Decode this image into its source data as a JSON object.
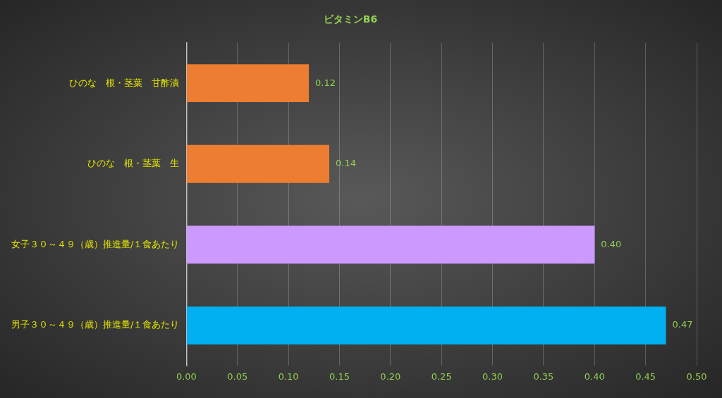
{
  "chart_data": {
    "type": "bar",
    "title": "ビタミンB6",
    "orientation": "horizontal",
    "categories": [
      "ひのな　根・茎葉　甘酢漬",
      "ひのな　根・茎葉　生",
      "女子３０～４９（歳）推進量/１食あたり",
      "男子３０～４９（歳）推進量/１食あたり"
    ],
    "values": [
      0.12,
      0.14,
      0.4,
      0.47
    ],
    "colors": [
      "#ed7d31",
      "#ed7d31",
      "#cc99ff",
      "#00b0f0"
    ],
    "value_labels": [
      "0.12",
      "0.14",
      "0.40",
      "0.47"
    ],
    "xlim": [
      0,
      0.5
    ],
    "xticks": [
      {
        "value": 0,
        "label": "0.00"
      },
      {
        "value": 0.05,
        "label": "0.05"
      },
      {
        "value": 0.1,
        "label": "0.10"
      },
      {
        "value": 0.15,
        "label": "0.15"
      },
      {
        "value": 0.2,
        "label": "0.20"
      },
      {
        "value": 0.25,
        "label": "0.25"
      },
      {
        "value": 0.3,
        "label": "0.30"
      },
      {
        "value": 0.35,
        "label": "0.35"
      },
      {
        "value": 0.4,
        "label": "0.40"
      },
      {
        "value": 0.45,
        "label": "0.45"
      },
      {
        "value": 0.5,
        "label": "0.50"
      }
    ],
    "grid": "x",
    "legend": false
  }
}
